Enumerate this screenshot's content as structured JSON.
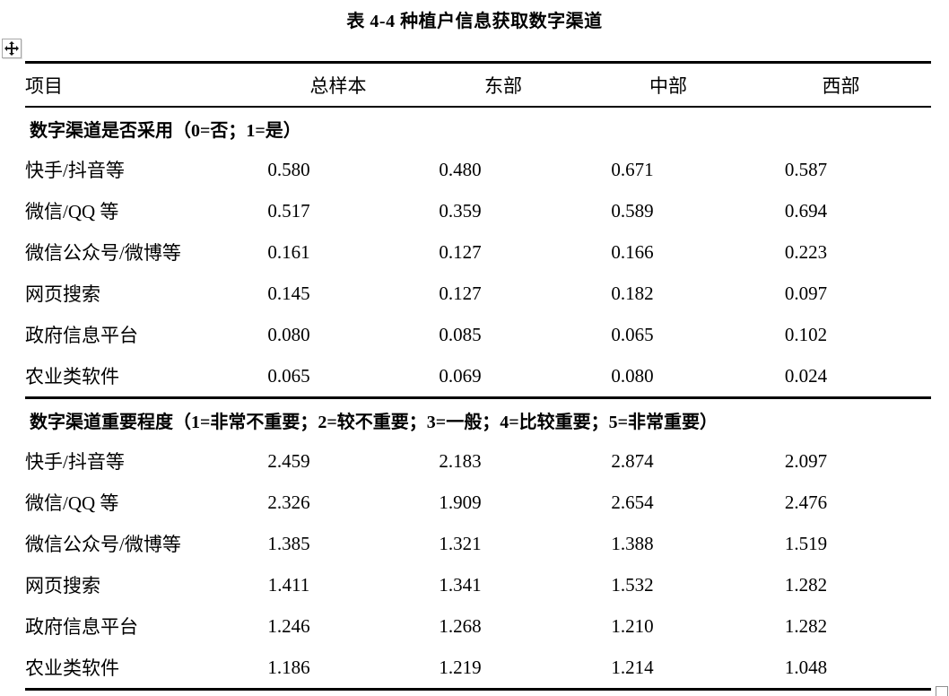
{
  "page": {
    "title": "表 4-4 种植户信息获取数字渠道"
  },
  "table": {
    "columns": [
      "项目",
      "总样本",
      "东部",
      "中部",
      "西部"
    ],
    "sections": [
      {
        "header": "数字渠道是否采用（0=否；1=是）",
        "rows": [
          {
            "label": "快手/抖音等",
            "values": [
              "0.580",
              "0.480",
              "0.671",
              "0.587"
            ]
          },
          {
            "label": "微信/QQ 等",
            "values": [
              "0.517",
              "0.359",
              "0.589",
              "0.694"
            ]
          },
          {
            "label": "微信公众号/微博等",
            "values": [
              "0.161",
              "0.127",
              "0.166",
              "0.223"
            ]
          },
          {
            "label": "网页搜索",
            "values": [
              "0.145",
              "0.127",
              "0.182",
              "0.097"
            ]
          },
          {
            "label": "政府信息平台",
            "values": [
              "0.080",
              "0.085",
              "0.065",
              "0.102"
            ]
          },
          {
            "label": "农业类软件",
            "values": [
              "0.065",
              "0.069",
              "0.080",
              "0.024"
            ]
          }
        ]
      },
      {
        "header": "数字渠道重要程度（1=非常不重要；2=较不重要；3=一般；4=比较重要；5=非常重要）",
        "rows": [
          {
            "label": "快手/抖音等",
            "values": [
              "2.459",
              "2.183",
              "2.874",
              "2.097"
            ]
          },
          {
            "label": "微信/QQ 等",
            "values": [
              "2.326",
              "1.909",
              "2.654",
              "2.476"
            ]
          },
          {
            "label": "微信公众号/微博等",
            "values": [
              "1.385",
              "1.321",
              "1.388",
              "1.519"
            ]
          },
          {
            "label": "网页搜索",
            "values": [
              "1.411",
              "1.341",
              "1.532",
              "1.282"
            ]
          },
          {
            "label": "政府信息平台",
            "values": [
              "1.246",
              "1.268",
              "1.210",
              "1.282"
            ]
          },
          {
            "label": "农业类软件",
            "values": [
              "1.186",
              "1.219",
              "1.214",
              "1.048"
            ]
          }
        ]
      }
    ]
  },
  "handles": {
    "move_icon": "move-four-arrows",
    "resize_icon": "resize-square"
  }
}
